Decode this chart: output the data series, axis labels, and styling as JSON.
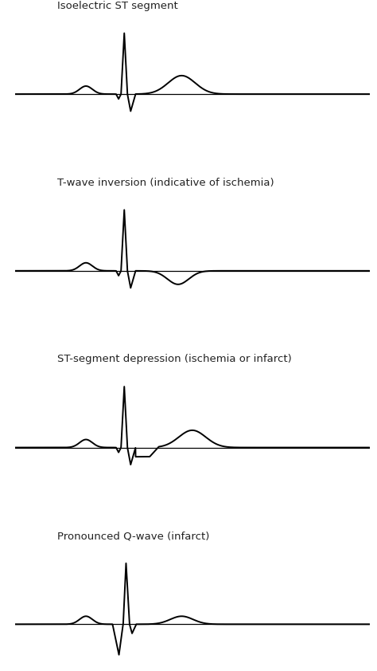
{
  "background_color": "#ffffff",
  "panels": [
    {
      "label": "Isoelectric ST segment"
    },
    {
      "label": "T-wave inversion (indicative of ischemia)"
    },
    {
      "label": "ST-segment depression (ischemia or infarct)"
    },
    {
      "label": "Pronounced Q-wave (infarct)"
    }
  ],
  "line_color": "#000000",
  "line_width": 1.4,
  "font_size": 9.5
}
